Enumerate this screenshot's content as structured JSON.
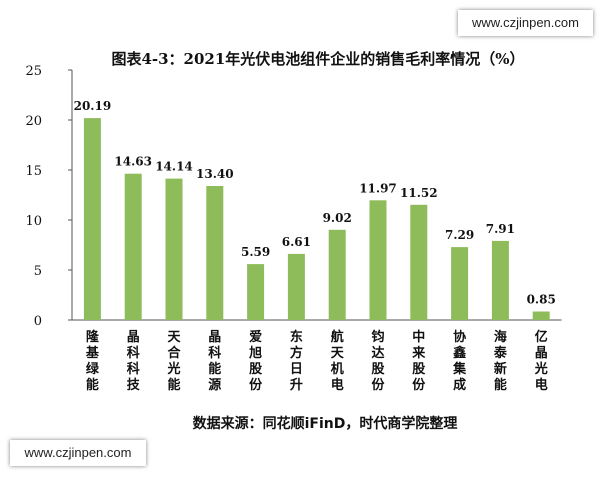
{
  "watermark": {
    "top": "www.czjinpen.com",
    "bottom": "www.czjinpen.com"
  },
  "colors": {
    "bar": "#8fbc5a",
    "axis": "#555555"
  },
  "chart_data": {
    "type": "bar",
    "title": "图表4-3：2021年光伏电池组件企业的销售毛利率情况（%）",
    "source": "数据来源：同花顺iFinD，时代商学院整理",
    "categories": [
      "隆基绿能",
      "晶科科技",
      "天合光能",
      "晶科能源",
      "爱旭股份",
      "东方日升",
      "航天机电",
      "钧达股份",
      "中来股份",
      "协鑫集成",
      "海泰新能",
      "亿晶光电"
    ],
    "values": [
      20.19,
      14.63,
      14.14,
      13.4,
      5.59,
      6.61,
      9.02,
      11.97,
      11.52,
      7.29,
      7.91,
      0.85
    ],
    "data_labels": [
      "20.19",
      "14.63",
      "14.14",
      "13.40",
      "5.59",
      "6.61",
      "9.02",
      "11.97",
      "11.52",
      "7.29",
      "7.91",
      "0.85"
    ],
    "y_ticks": [
      "0",
      "5",
      "10",
      "15",
      "20",
      "25"
    ],
    "ylim": [
      0,
      25
    ],
    "grid": false,
    "legend": "none"
  }
}
